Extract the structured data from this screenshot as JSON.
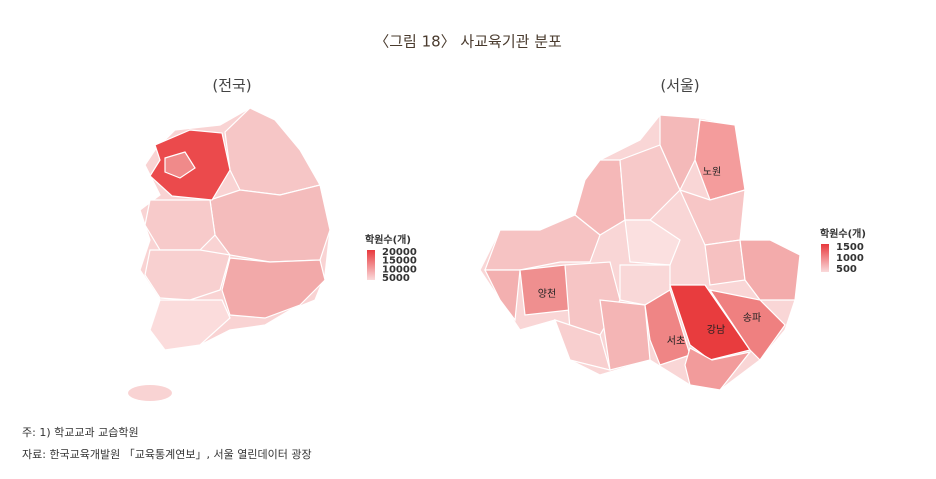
{
  "title": "〈그림 18〉 사교육기관 분포",
  "maps": [
    {
      "subtitle": "(전국)",
      "legend": {
        "title": "학원수(개)",
        "ticks": [
          20000,
          15000,
          10000,
          5000
        ]
      }
    },
    {
      "subtitle": "(서울)",
      "legend": {
        "title": "학원수(개)",
        "ticks": [
          1500,
          1000,
          500
        ]
      },
      "labels": [
        "노원",
        "양천",
        "강남",
        "송파",
        "서초"
      ]
    }
  ],
  "notes": [
    "주: 1) 학교교과 교습학원",
    "자료: 한국교육개발원 「교육통계연보」, 서울 열린데이터 광장"
  ]
}
